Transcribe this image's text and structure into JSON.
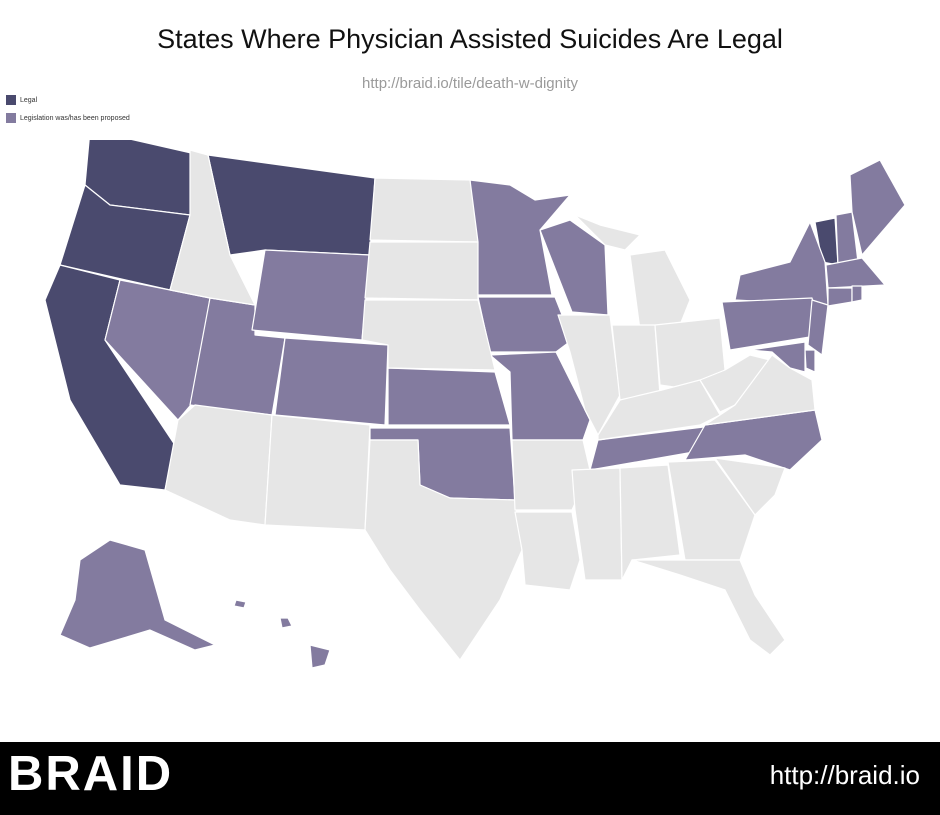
{
  "title": "States Where Physician Assisted Suicides Are Legal",
  "subtitle": "http://braid.io/tile/death-w-dignity",
  "legend": {
    "legal": {
      "label": "Legal",
      "color": "#4a4a6e"
    },
    "proposed": {
      "label": "Legislation was/has been proposed",
      "color": "#837b9f"
    }
  },
  "no_data_color": "#e6e6e6",
  "states": {
    "legal": [
      "Washington",
      "Oregon",
      "California",
      "Montana",
      "Vermont"
    ],
    "proposed": [
      "Alaska",
      "Hawaii",
      "Nevada",
      "Utah",
      "Colorado",
      "Wyoming",
      "Kansas",
      "Oklahoma",
      "Minnesota",
      "Iowa",
      "Missouri",
      "Wisconsin",
      "Tennessee",
      "North Carolina",
      "Maine",
      "New Hampshire",
      "Massachusetts",
      "Connecticut",
      "Rhode Island",
      "New York",
      "New Jersey",
      "Pennsylvania",
      "Delaware",
      "Maryland"
    ]
  },
  "footer": {
    "brand": "BRAID",
    "url": "http://braid.io"
  }
}
